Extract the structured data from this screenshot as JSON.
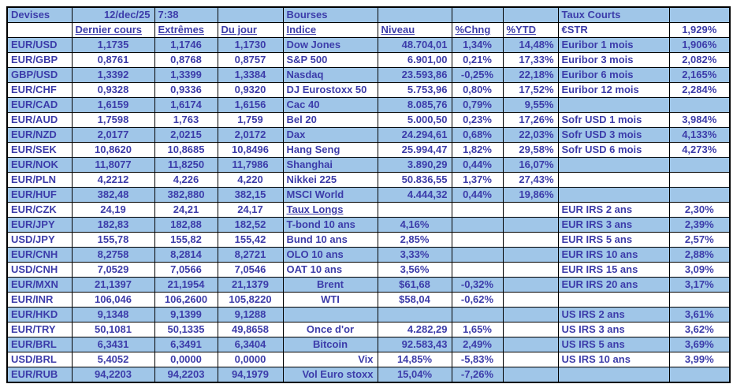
{
  "meta": {
    "date": "12/dec/25",
    "time": "7:38"
  },
  "colors": {
    "band": "#A0C6E8",
    "text": "#3C3CAA",
    "border": "#000000"
  },
  "sections": {
    "devises": {
      "title": "Devises",
      "columns": [
        "Dernier cours",
        "Extrêmes",
        "Du jour"
      ],
      "rows": [
        {
          "pair": "EUR/USD",
          "dernier": "1,1735",
          "extremes": "1,1746",
          "jour": "1,1730"
        },
        {
          "pair": "EUR/GBP",
          "dernier": "0,8761",
          "extremes": "0,8768",
          "jour": "0,8757"
        },
        {
          "pair": "GBP/USD",
          "dernier": "1,3392",
          "extremes": "1,3399",
          "jour": "1,3384"
        },
        {
          "pair": "EUR/CHF",
          "dernier": "0,9328",
          "extremes": "0,9336",
          "jour": "0,9320"
        },
        {
          "pair": "EUR/CAD",
          "dernier": "1,6159",
          "extremes": "1,6174",
          "jour": "1,6156"
        },
        {
          "pair": "EUR/AUD",
          "dernier": "1,7598",
          "extremes": "1,763",
          "jour": "1,759"
        },
        {
          "pair": "EUR/NZD",
          "dernier": "2,0177",
          "extremes": "2,0215",
          "jour": "2,0172"
        },
        {
          "pair": "EUR/SEK",
          "dernier": "10,8620",
          "extremes": "10,8685",
          "jour": "10,8496"
        },
        {
          "pair": "EUR/NOK",
          "dernier": "11,8077",
          "extremes": "11,8250",
          "jour": "11,7986"
        },
        {
          "pair": "EUR/PLN",
          "dernier": "4,2212",
          "extremes": "4,226",
          "jour": "4,220"
        },
        {
          "pair": "EUR/HUF",
          "dernier": "382,48",
          "extremes": "382,880",
          "jour": "382,15"
        },
        {
          "pair": "EUR/CZK",
          "dernier": "24,19",
          "extremes": "24,21",
          "jour": "24,17"
        },
        {
          "pair": "EUR/JPY",
          "dernier": "182,83",
          "extremes": "182,88",
          "jour": "182,52"
        },
        {
          "pair": "USD/JPY",
          "dernier": "155,78",
          "extremes": "155,82",
          "jour": "155,42"
        },
        {
          "pair": "EUR/CNH",
          "dernier": "8,2758",
          "extremes": "8,2814",
          "jour": "8,2721"
        },
        {
          "pair": "USD/CNH",
          "dernier": "7,0529",
          "extremes": "7,0566",
          "jour": "7,0546"
        },
        {
          "pair": "EUR/MXN",
          "dernier": "21,1397",
          "extremes": "21,1954",
          "jour": "21,1379"
        },
        {
          "pair": "EUR/INR",
          "dernier": "106,046",
          "extremes": "106,2600",
          "jour": "105,8220"
        },
        {
          "pair": "EUR/HKD",
          "dernier": "9,1348",
          "extremes": "9,1399",
          "jour": "9,1288"
        },
        {
          "pair": "EUR/TRY",
          "dernier": "50,1081",
          "extremes": "50,1335",
          "jour": "49,8658"
        },
        {
          "pair": "EUR/BRL",
          "dernier": "6,3431",
          "extremes": "6,3491",
          "jour": "6,3404"
        },
        {
          "pair": "USD/BRL",
          "dernier": "5,4052",
          "extremes": "0,0000",
          "jour": "0,0000"
        },
        {
          "pair": "EUR/RUB",
          "dernier": "94,2203",
          "extremes": "94,2203",
          "jour": "94,1979"
        }
      ]
    },
    "bourses": {
      "title": "Bourses",
      "columns": [
        "Indice",
        "Niveau",
        "%Chng",
        "%YTD"
      ],
      "indices": [
        {
          "name": "Dow Jones",
          "niveau": "48.704,01",
          "chng": "1,34%",
          "ytd": "14,48%"
        },
        {
          "name": "S&P 500",
          "niveau": "6.901,00",
          "chng": "0,21%",
          "ytd": "17,33%"
        },
        {
          "name": "Nasdaq",
          "niveau": "23.593,86",
          "chng": "-0,25%",
          "ytd": "22,18%"
        },
        {
          "name": "DJ Eurostoxx 50",
          "niveau": "5.753,96",
          "chng": "0,80%",
          "ytd": "17,52%"
        },
        {
          "name": "Cac 40",
          "niveau": "8.085,76",
          "chng": "0,79%",
          "ytd": "9,55%"
        },
        {
          "name": "Bel 20",
          "niveau": "5.000,50",
          "chng": "0,23%",
          "ytd": "17,26%"
        },
        {
          "name": "Dax",
          "niveau": "24.294,61",
          "chng": "0,68%",
          "ytd": "22,03%"
        },
        {
          "name": "Hang Seng",
          "niveau": "25.994,47",
          "chng": "1,82%",
          "ytd": "29,58%"
        },
        {
          "name": "Shanghai",
          "niveau": "3.890,29",
          "chng": "0,44%",
          "ytd": "16,07%"
        },
        {
          "name": "Nikkei 225",
          "niveau": "50.836,55",
          "chng": "1,37%",
          "ytd": "27,43%"
        },
        {
          "name": "MSCI World",
          "niveau": "4.444,32",
          "chng": "0,44%",
          "ytd": "19,86%"
        }
      ],
      "taux_longs": {
        "label": "Taux Longs",
        "items": [
          {
            "name": "T-bond 10 ans",
            "value": "4,16%"
          },
          {
            "name": "Bund 10 ans",
            "value": "2,85%"
          },
          {
            "name": "OLO 10 ans",
            "value": "3,33%"
          },
          {
            "name": "OAT 10 ans",
            "value": "3,56%"
          }
        ]
      },
      "commodities": [
        {
          "name": "Brent",
          "value": "$61,68",
          "chng": "-0,32%"
        },
        {
          "name": "WTI",
          "value": "$58,04",
          "chng": "-0,62%"
        }
      ],
      "autres": [
        {
          "name": "Once d'or",
          "value": "4.282,29",
          "chng": "1,65%"
        },
        {
          "name": "Bitcoin",
          "value": "92.583,43",
          "chng": "2,49%"
        },
        {
          "name": "Vix",
          "value": "14,85%",
          "chng": "-5,83%"
        },
        {
          "name": "Vol Euro stoxx",
          "value": "15,04%",
          "chng": "-7,26%"
        }
      ]
    },
    "taux_courts": {
      "title": "Taux Courts",
      "items": [
        {
          "name": "€STR",
          "value": "1,929%"
        },
        {
          "name": "Euribor 1 mois",
          "value": "1,906%"
        },
        {
          "name": "Euribor 3 mois",
          "value": "2,082%"
        },
        {
          "name": "Euribor 6 mois",
          "value": "2,165%"
        },
        {
          "name": "Euribor 12 mois",
          "value": "2,284%"
        },
        {
          "name": "Sofr USD 1 mois",
          "value": "3,984%"
        },
        {
          "name": "Sofr USD 3 mois",
          "value": "4,133%"
        },
        {
          "name": "Sofr USD 6 mois",
          "value": "4,273%"
        },
        {
          "name": "EUR IRS 2 ans",
          "value": "2,30%"
        },
        {
          "name": "EUR IRS 3 ans",
          "value": "2,39%"
        },
        {
          "name": "EUR IRS 5 ans",
          "value": "2,57%"
        },
        {
          "name": "EUR IRS 10 ans",
          "value": "2,88%"
        },
        {
          "name": "EUR IRS 15 ans",
          "value": "3,09%"
        },
        {
          "name": "EUR IRS 20 ans",
          "value": "3,17%"
        },
        {
          "name": "US IRS 2 ans",
          "value": "3,61%"
        },
        {
          "name": "US IRS 3 ans",
          "value": "3,62%"
        },
        {
          "name": "US IRS 5 ans",
          "value": "3,69%"
        },
        {
          "name": "US IRS 10 ans",
          "value": "3,99%"
        }
      ]
    }
  }
}
